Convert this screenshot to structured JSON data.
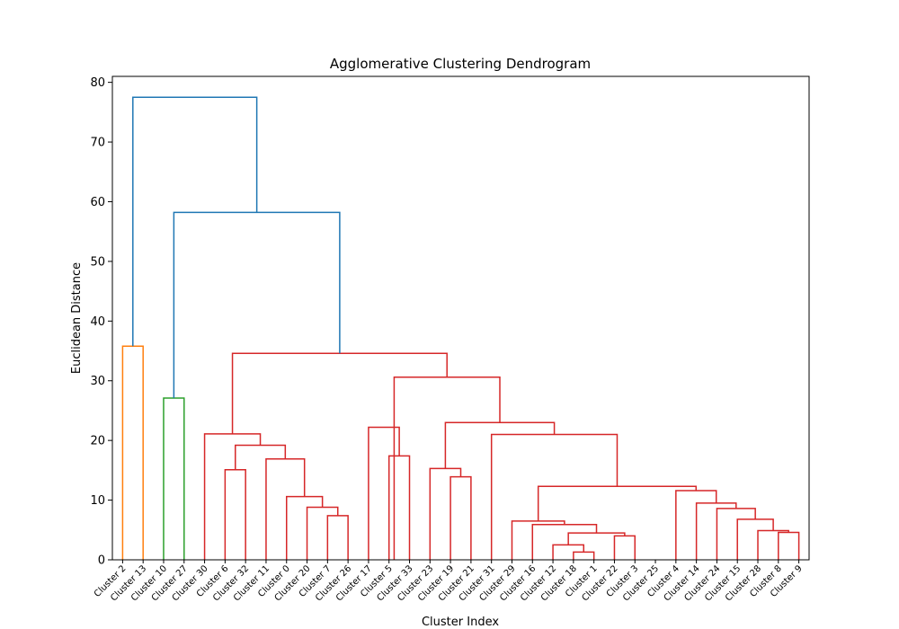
{
  "chart_data": {
    "type": "dendrogram",
    "title": "Agglomerative Clustering Dendrogram",
    "xlabel": "Cluster Index",
    "ylabel": "Euclidean Distance",
    "ylim": [
      0,
      81
    ],
    "yticks": [
      0,
      10,
      20,
      30,
      40,
      50,
      60,
      70,
      80
    ],
    "grid": false,
    "leaves": [
      "Cluster 2",
      "Cluster 13",
      "Cluster 10",
      "Cluster 27",
      "Cluster 30",
      "Cluster 6",
      "Cluster 32",
      "Cluster 11",
      "Cluster 0",
      "Cluster 20",
      "Cluster 7",
      "Cluster 26",
      "Cluster 17",
      "Cluster 5",
      "Cluster 33",
      "Cluster 23",
      "Cluster 19",
      "Cluster 21",
      "Cluster 31",
      "Cluster 29",
      "Cluster 16",
      "Cluster 12",
      "Cluster 18",
      "Cluster 1",
      "Cluster 22",
      "Cluster 3",
      "Cluster 25",
      "Cluster 4",
      "Cluster 14",
      "Cluster 24",
      "Cluster 15",
      "Cluster 28",
      "Cluster 8",
      "Cluster 9"
    ],
    "colors": {
      "orange": "#ff7f0e",
      "green": "#2ca02c",
      "red": "#d62728",
      "blue": "#1f77b4"
    },
    "merges": [
      {
        "left": 0,
        "right": 1,
        "height": 35.8,
        "color": "orange"
      },
      {
        "left": 2,
        "right": 3,
        "height": 27.1,
        "color": "green"
      },
      {
        "left": 10,
        "right": 11,
        "height": 7.4,
        "color": "red"
      },
      {
        "left": 9,
        "right": 10.5,
        "height": 8.8,
        "color": "red"
      },
      {
        "left": 8,
        "right": 9.75,
        "height": 10.6,
        "color": "red"
      },
      {
        "left": 7,
        "right": 8.875,
        "height": 16.9,
        "color": "red"
      },
      {
        "left": 5,
        "right": 6,
        "height": 15.1,
        "color": "red"
      },
      {
        "left": 5.5,
        "right": 7.9375,
        "height": 19.2,
        "color": "red"
      },
      {
        "left": 4,
        "right": 6.71875,
        "height": 21.1,
        "color": "red"
      },
      {
        "left": 13,
        "right": 14,
        "height": 17.4,
        "color": "red"
      },
      {
        "left": 12,
        "right": 13.5,
        "height": 22.2,
        "color": "red"
      },
      {
        "left": 16,
        "right": 17,
        "height": 13.9,
        "color": "red"
      },
      {
        "left": 15,
        "right": 16.5,
        "height": 15.3,
        "color": "red"
      },
      {
        "left": 22,
        "right": 23,
        "height": 1.3,
        "color": "red"
      },
      {
        "left": 21,
        "right": 22.5,
        "height": 2.5,
        "color": "red"
      },
      {
        "left": 24,
        "right": 25,
        "height": 4.0,
        "color": "red"
      },
      {
        "left": 21.75,
        "right": 24.5,
        "height": 4.5,
        "color": "red"
      },
      {
        "left": 20,
        "right": 23.125,
        "height": 5.9,
        "color": "red"
      },
      {
        "left": 19,
        "right": 21.5625,
        "height": 6.5,
        "color": "red"
      },
      {
        "left": 32,
        "right": 33,
        "height": 4.6,
        "color": "red"
      },
      {
        "left": 31,
        "right": 32.5,
        "height": 4.9,
        "color": "red"
      },
      {
        "left": 30,
        "right": 31.75,
        "height": 6.8,
        "color": "red"
      },
      {
        "left": 29,
        "right": 30.875,
        "height": 8.6,
        "color": "red"
      },
      {
        "left": 28,
        "right": 29.9375,
        "height": 9.5,
        "color": "red"
      },
      {
        "left": 27,
        "right": 28.96875,
        "height": 11.6,
        "color": "red"
      },
      {
        "left": 20.28125,
        "right": 27.984375,
        "height": 12.3,
        "color": "red"
      },
      {
        "left": 18,
        "right": 24.1328125,
        "height": 21.0,
        "color": "red"
      },
      {
        "left": 15.75,
        "right": 21.06640625,
        "height": 23.0,
        "color": "red"
      },
      {
        "left": 13.25,
        "right": 18.408203125,
        "height": 30.6,
        "color": "red"
      },
      {
        "left": 5.359375,
        "right": 15.8291015625,
        "height": 34.6,
        "color": "red"
      },
      {
        "left": 2.5,
        "right": 10.59423828125,
        "height": 58.2,
        "color": "blue"
      },
      {
        "left": 0.5,
        "right": 6.547119140625,
        "height": 77.5,
        "color": "blue"
      }
    ]
  }
}
